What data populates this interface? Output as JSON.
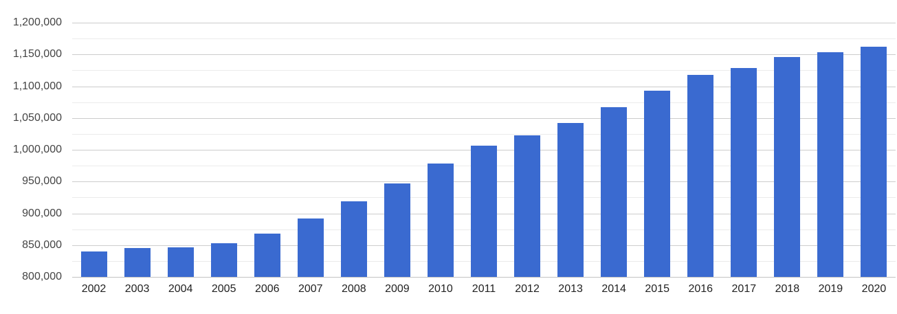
{
  "chart_data": {
    "type": "bar",
    "title": "",
    "xlabel": "",
    "ylabel": "",
    "legend": "none",
    "grid": true,
    "categories": [
      "2002",
      "2003",
      "2004",
      "2005",
      "2006",
      "2007",
      "2008",
      "2009",
      "2010",
      "2011",
      "2012",
      "2013",
      "2014",
      "2015",
      "2016",
      "2017",
      "2018",
      "2019",
      "2020"
    ],
    "values": [
      840500,
      845000,
      846000,
      852500,
      868500,
      891500,
      918500,
      947000,
      978500,
      1006500,
      1023000,
      1042500,
      1066500,
      1093500,
      1118000,
      1129000,
      1145500,
      1153000,
      1162000
    ],
    "ylim": [
      800000,
      1200000
    ],
    "y_major_step": 50000,
    "y_minor_step": 25000,
    "y_tick_labels": [
      "800,000",
      "850,000",
      "900,000",
      "950,000",
      "1,000,000",
      "1,050,000",
      "1,100,000",
      "1,150,000",
      "1,200,000"
    ],
    "colors": {
      "bar": "#3a6ad0",
      "grid_major": "#cccccc",
      "grid_minor": "#ebebeb",
      "axis_baseline": "#c2c2c2",
      "y_label_text": "#444444",
      "x_label_text": "#222222",
      "background": "#ffffff"
    }
  }
}
